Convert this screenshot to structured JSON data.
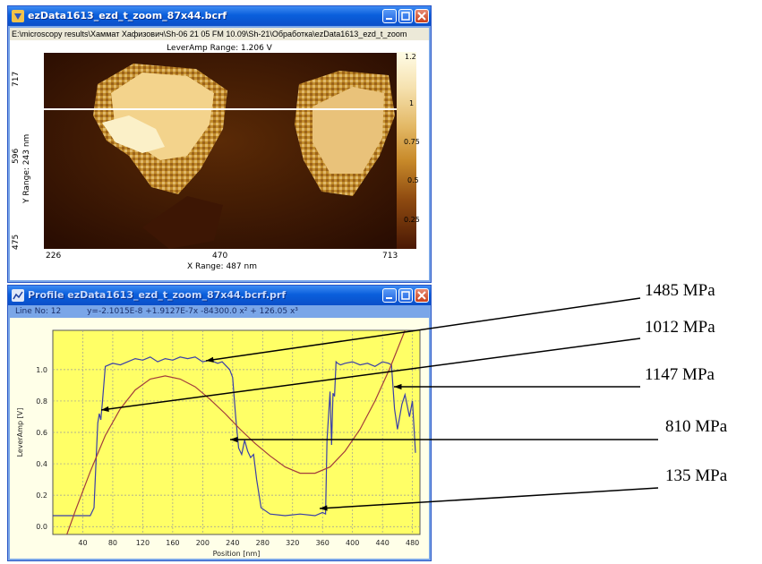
{
  "top_window": {
    "title": "ezData1613_ezd_t_zoom_87x44.bcrf",
    "path": "E:\\microscopy results\\Хаммат Хафизович\\Sh-06 21 05 FM 10.09\\Sh-21\\Обработка\\ezData1613_ezd_t_zoom",
    "caption": "LeverAmp Range: 1.206 V",
    "y_label": "Y Range: 243 nm",
    "y_ticks": [
      "717",
      "596",
      "475"
    ],
    "x_label": "X Range: 487 nm",
    "x_ticks": [
      "226",
      "470",
      "713"
    ],
    "colorbar_ticks": [
      "1.2",
      "1",
      "0.75",
      "0.5",
      "0.25"
    ]
  },
  "bottom_window": {
    "title": "Profile ezData1613_ezd_t_zoom_87x44.bcrf.prf",
    "line_no": "Line No: 12",
    "equation": "y=-2.1015E-8 +1.9127E-7x -84300.0 x² + 126.05 x³",
    "y_label": "LeverAmp [V]",
    "x_label": "Position [nm]",
    "accent": "#ffff66"
  },
  "chart_data": {
    "type": "line",
    "xlabel": "Position [nm]",
    "ylabel": "LeverAmp [V]",
    "xlim": [
      0,
      490
    ],
    "ylim": [
      -0.05,
      1.25
    ],
    "x_ticks": [
      40,
      80,
      120,
      160,
      200,
      240,
      280,
      320,
      360,
      400,
      440,
      480
    ],
    "y_ticks": [
      0.0,
      0.2,
      0.4,
      0.6,
      0.8,
      1.0
    ],
    "grid": true,
    "series": [
      {
        "x": [
          0,
          20,
          40,
          50,
          55,
          58,
          60,
          62,
          64,
          66,
          70,
          80,
          90,
          100,
          110,
          120,
          130,
          140,
          150,
          160,
          170,
          180,
          190,
          200,
          210,
          220,
          226,
          232,
          236,
          240,
          244,
          248,
          252,
          256,
          260,
          264,
          268,
          272,
          278,
          290,
          310,
          330,
          350,
          360,
          364,
          366,
          370,
          372,
          374,
          376,
          378,
          380,
          384,
          390,
          400,
          410,
          420,
          430,
          440,
          448,
          452,
          456,
          460,
          466,
          470,
          476,
          480,
          484
        ],
        "y": [
          0.07,
          0.07,
          0.07,
          0.07,
          0.12,
          0.45,
          0.66,
          0.72,
          0.68,
          0.78,
          1.02,
          1.04,
          1.03,
          1.05,
          1.07,
          1.06,
          1.08,
          1.05,
          1.07,
          1.06,
          1.08,
          1.07,
          1.08,
          1.05,
          1.06,
          1.04,
          1.05,
          1.02,
          1.0,
          0.95,
          0.7,
          0.5,
          0.46,
          0.55,
          0.48,
          0.44,
          0.46,
          0.3,
          0.12,
          0.08,
          0.07,
          0.08,
          0.07,
          0.09,
          0.08,
          0.55,
          0.86,
          0.52,
          0.85,
          0.83,
          1.05,
          1.04,
          1.03,
          1.04,
          1.05,
          1.03,
          1.04,
          1.02,
          1.05,
          1.04,
          1.03,
          0.75,
          0.62,
          0.78,
          0.84,
          0.7,
          0.8,
          0.47
        ]
      },
      {
        "x": [
          0,
          30,
          50,
          70,
          90,
          110,
          130,
          150,
          170,
          190,
          210,
          230,
          250,
          270,
          290,
          310,
          330,
          350,
          370,
          390,
          410,
          430,
          450,
          470,
          490
        ],
        "y": [
          -0.3,
          0.1,
          0.35,
          0.58,
          0.75,
          0.87,
          0.94,
          0.96,
          0.94,
          0.89,
          0.81,
          0.72,
          0.62,
          0.53,
          0.45,
          0.38,
          0.34,
          0.34,
          0.38,
          0.48,
          0.62,
          0.8,
          1.01,
          1.25,
          1.5
        ]
      }
    ]
  },
  "callouts": [
    {
      "label": "1485 MPa"
    },
    {
      "label": "1012 MPa"
    },
    {
      "label": "1147 MPa"
    },
    {
      "label": "810 MPa"
    },
    {
      "label": "135 MPa"
    }
  ]
}
